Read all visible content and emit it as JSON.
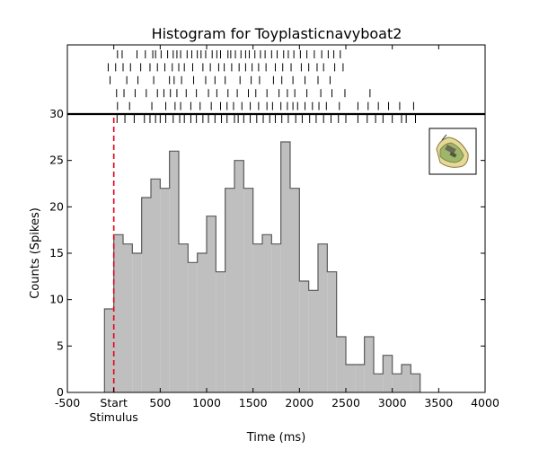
{
  "chart_data": {
    "type": "bar",
    "title": "Histogram for Toyplasticnavyboat2",
    "xlabel": "Time (ms)",
    "ylabel": "Counts (Spikes)",
    "xlim": [
      -500,
      4000
    ],
    "ylim": [
      0,
      30
    ],
    "x_ticks": [
      {
        "value": -500,
        "label": "-500"
      },
      {
        "value": 0,
        "label": "Start"
      },
      {
        "value": 500,
        "label": "500"
      },
      {
        "value": 1000,
        "label": "1000"
      },
      {
        "value": 1500,
        "label": "1500"
      },
      {
        "value": 2000,
        "label": "2000"
      },
      {
        "value": 2500,
        "label": "2500"
      },
      {
        "value": 3000,
        "label": "3000"
      },
      {
        "value": 3500,
        "label": "3500"
      },
      {
        "value": 4000,
        "label": "4000"
      }
    ],
    "y_ticks": [
      0,
      5,
      10,
      15,
      20,
      25,
      30
    ],
    "stimulus_label": "Stimulus",
    "stimulus_onset": 0,
    "bin_width": 100,
    "bin_starts": [
      -100,
      0,
      100,
      200,
      300,
      400,
      500,
      600,
      700,
      800,
      900,
      1000,
      1100,
      1200,
      1300,
      1400,
      1500,
      1600,
      1700,
      1800,
      1900,
      2000,
      2100,
      2200,
      2300,
      2400,
      2500,
      2600,
      2700,
      2800,
      2900,
      3000,
      3100,
      3200
    ],
    "values": [
      9,
      17,
      16,
      15,
      21,
      23,
      22,
      26,
      16,
      14,
      15,
      19,
      13,
      22,
      25,
      22,
      16,
      17,
      16,
      27,
      22,
      12,
      11,
      16,
      13,
      6,
      3,
      3,
      6,
      2,
      4,
      2,
      3,
      2
    ],
    "raster_trials": [
      [
        40,
        90,
        250,
        340,
        420,
        450,
        510,
        580,
        640,
        680,
        720,
        790,
        840,
        900,
        940,
        990,
        1060,
        1110,
        1150,
        1230,
        1260,
        1310,
        1370,
        1420,
        1460,
        1520,
        1580,
        1630,
        1700,
        1760,
        1830,
        1880,
        1940,
        2010,
        2080,
        2160,
        2240,
        2310,
        2370,
        2440
      ],
      [
        -60,
        20,
        100,
        180,
        290,
        390,
        470,
        550,
        630,
        700,
        760,
        850,
        960,
        1040,
        1130,
        1190,
        1270,
        1350,
        1420,
        1490,
        1560,
        1640,
        1740,
        1820,
        1910,
        2020,
        2100,
        2190,
        2260,
        2380,
        2470
      ],
      [
        -40,
        140,
        260,
        430,
        600,
        650,
        730,
        860,
        990,
        1090,
        1200,
        1360,
        1480,
        1570,
        1720,
        1810,
        1930,
        2060,
        2200,
        2330
      ],
      [
        30,
        110,
        230,
        350,
        470,
        540,
        610,
        680,
        780,
        890,
        1020,
        1110,
        1230,
        1330,
        1450,
        1530,
        1650,
        1780,
        1870,
        1950,
        2080,
        2230,
        2350,
        2490,
        2760
      ],
      [
        40,
        170,
        410,
        560,
        660,
        720,
        830,
        930,
        1050,
        1150,
        1220,
        1290,
        1380,
        1470,
        1560,
        1650,
        1710,
        1800,
        1870,
        1930,
        1980,
        2060,
        2140,
        2210,
        2290,
        2430,
        2630,
        2740,
        2850,
        2960,
        3080,
        3230
      ],
      [
        35,
        120,
        220,
        330,
        390,
        450,
        500,
        560,
        640,
        710,
        760,
        830,
        890,
        960,
        1020,
        1090,
        1160,
        1220,
        1300,
        1340,
        1400,
        1470,
        1540,
        1610,
        1680,
        1740,
        1810,
        1880,
        1960,
        2030,
        2110,
        2180,
        2260,
        2340,
        2420,
        2500,
        2630,
        2730,
        2820,
        2900,
        3000,
        3100,
        3150,
        3250
      ]
    ],
    "grid": false,
    "legend": "none"
  }
}
